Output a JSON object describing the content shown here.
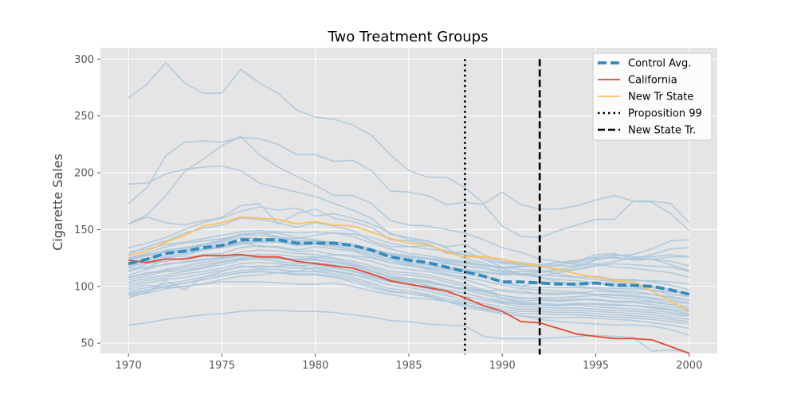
{
  "chart_data": {
    "type": "line",
    "title": "Two Treatment Groups",
    "xlabel": "",
    "ylabel": "Cigarette Sales",
    "xlim": [
      1968.5,
      2001.5
    ],
    "ylim": [
      41,
      310
    ],
    "x_ticks": [
      1970,
      1975,
      1980,
      1985,
      1990,
      1995,
      2000
    ],
    "y_ticks": [
      50,
      100,
      150,
      200,
      250,
      300
    ],
    "grid": true,
    "legend_position": "top-right",
    "colors": {
      "plot_bg": "#e5e5e5",
      "grid": "#ffffff",
      "control_states": "#a9c7dc",
      "control_avg": "#348abd",
      "california": "#e24a33",
      "new_tr_state": "#fbc15e",
      "vline": "#000000"
    },
    "years": [
      1970,
      1971,
      1972,
      1973,
      1974,
      1975,
      1976,
      1977,
      1978,
      1979,
      1980,
      1981,
      1982,
      1983,
      1984,
      1985,
      1986,
      1987,
      1988,
      1989,
      1990,
      1991,
      1992,
      1993,
      1994,
      1995,
      1996,
      1997,
      1998,
      1999,
      2000
    ],
    "series": [
      {
        "name": "Control Avg.",
        "role": "control_avg",
        "values": [
          120,
          124,
          129,
          131,
          134,
          136,
          141,
          141,
          141,
          138,
          138,
          138,
          136,
          132,
          126,
          123,
          121,
          117,
          113,
          109,
          104,
          104,
          103,
          102,
          102,
          103,
          101,
          101,
          100,
          97,
          93
        ]
      },
      {
        "name": "California",
        "role": "california",
        "values": [
          123,
          121,
          124,
          124,
          127,
          127,
          128,
          126,
          126,
          122,
          120,
          118,
          116,
          111,
          105,
          102,
          99,
          96,
          90,
          83,
          78,
          69,
          68,
          63,
          58,
          56,
          54,
          54,
          53,
          47,
          41
        ]
      },
      {
        "name": "New Tr State",
        "role": "new_tr_state",
        "values": [
          127,
          131,
          139,
          145,
          153,
          156,
          161,
          160,
          159,
          155,
          157,
          154,
          153,
          148,
          142,
          138,
          137,
          130,
          126,
          126,
          124,
          120,
          118,
          115,
          111,
          108,
          105,
          104,
          96,
          87,
          78
        ]
      }
    ],
    "control_states": [
      [
        266,
        278,
        297,
        279,
        270,
        270,
        291,
        279,
        270,
        255,
        249,
        247,
        242,
        233,
        216,
        202,
        196,
        196,
        187,
        173,
        183,
        172,
        168,
        168,
        171,
        176,
        180,
        175,
        175,
        173,
        156
      ],
      [
        190,
        191,
        199,
        203,
        205,
        206,
        202,
        191,
        187,
        183,
        179,
        173,
        167,
        160,
        146,
        143,
        140,
        134,
        124,
        121,
        114,
        111,
        108,
        106,
        105,
        103,
        100,
        100,
        99,
        97,
        93
      ],
      [
        173,
        187,
        215,
        227,
        228,
        227,
        231,
        230,
        225,
        216,
        216,
        210,
        211,
        202,
        184,
        183,
        180,
        172,
        174,
        172,
        153,
        144,
        143,
        149,
        154,
        159,
        159,
        175,
        174,
        164,
        149
      ],
      [
        155,
        163,
        180,
        201,
        212,
        224,
        232,
        216,
        205,
        197,
        189,
        180,
        180,
        173,
        158,
        154,
        153,
        150,
        147,
        141,
        134,
        130,
        124,
        122,
        119,
        124,
        126,
        123,
        124,
        119,
        114
      ],
      [
        155,
        161,
        156,
        154,
        158,
        160,
        166,
        170,
        167,
        169,
        162,
        164,
        160,
        155,
        147,
        141,
        140,
        135,
        137,
        128,
        121,
        120,
        117,
        118,
        118,
        120,
        117,
        116,
        114,
        112,
        108
      ],
      [
        134,
        138,
        143,
        150,
        156,
        161,
        171,
        173,
        155,
        164,
        168,
        160,
        157,
        152,
        141,
        140,
        138,
        129,
        131,
        124,
        120,
        119,
        117,
        115,
        111,
        108,
        106,
        106,
        104,
        101,
        97
      ],
      [
        128,
        135,
        140,
        147,
        151,
        154,
        160,
        159,
        156,
        152,
        156,
        153,
        149,
        140,
        135,
        135,
        136,
        131,
        128,
        124,
        117,
        115,
        114,
        111,
        108,
        106,
        104,
        102,
        100,
        97,
        93
      ],
      [
        125,
        129,
        135,
        138,
        140,
        142,
        145,
        145,
        143,
        142,
        145,
        147,
        144,
        138,
        133,
        129,
        127,
        124,
        122,
        119,
        116,
        111,
        108,
        104,
        102,
        103,
        102,
        100,
        97,
        93,
        91
      ],
      [
        119,
        124,
        131,
        131,
        136,
        140,
        145,
        147,
        144,
        140,
        140,
        139,
        137,
        133,
        127,
        124,
        119,
        116,
        114,
        110,
        103,
        100,
        99,
        99,
        99,
        98,
        96,
        96,
        93,
        90,
        88
      ],
      [
        116,
        116,
        125,
        127,
        132,
        137,
        139,
        135,
        135,
        132,
        135,
        133,
        131,
        126,
        121,
        119,
        115,
        111,
        108,
        105,
        101,
        98,
        97,
        96,
        95,
        93,
        92,
        91,
        89,
        86,
        85
      ],
      [
        113,
        120,
        122,
        125,
        128,
        129,
        134,
        136,
        134,
        131,
        131,
        128,
        126,
        122,
        117,
        115,
        113,
        110,
        106,
        101,
        96,
        94,
        94,
        94,
        94,
        93,
        93,
        92,
        90,
        88,
        86
      ],
      [
        110,
        115,
        120,
        121,
        123,
        126,
        130,
        132,
        131,
        129,
        128,
        125,
        122,
        118,
        113,
        112,
        110,
        106,
        102,
        97,
        92,
        89,
        90,
        90,
        91,
        92,
        90,
        89,
        87,
        84,
        82
      ],
      [
        108,
        111,
        115,
        118,
        121,
        124,
        127,
        128,
        128,
        126,
        126,
        124,
        120,
        116,
        111,
        110,
        108,
        104,
        100,
        96,
        90,
        87,
        88,
        87,
        88,
        89,
        86,
        86,
        84,
        82,
        80
      ],
      [
        106,
        109,
        114,
        116,
        119,
        122,
        125,
        125,
        124,
        123,
        123,
        121,
        118,
        113,
        108,
        106,
        104,
        100,
        97,
        93,
        89,
        86,
        85,
        84,
        85,
        84,
        83,
        83,
        82,
        80,
        78
      ],
      [
        104,
        107,
        110,
        113,
        116,
        119,
        123,
        124,
        122,
        120,
        121,
        119,
        116,
        111,
        106,
        104,
        101,
        97,
        94,
        90,
        86,
        84,
        84,
        83,
        84,
        82,
        81,
        80,
        79,
        77,
        75
      ],
      [
        102,
        105,
        108,
        111,
        113,
        116,
        120,
        121,
        120,
        118,
        119,
        117,
        113,
        109,
        104,
        101,
        98,
        94,
        91,
        88,
        85,
        82,
        82,
        81,
        81,
        80,
        79,
        78,
        77,
        75,
        74
      ],
      [
        100,
        103,
        106,
        108,
        111,
        114,
        117,
        118,
        117,
        116,
        116,
        114,
        111,
        106,
        101,
        99,
        96,
        92,
        88,
        85,
        82,
        80,
        80,
        79,
        79,
        78,
        77,
        76,
        75,
        73,
        71
      ],
      [
        96,
        99,
        102,
        105,
        108,
        111,
        114,
        115,
        115,
        113,
        113,
        111,
        108,
        103,
        98,
        96,
        93,
        89,
        86,
        83,
        80,
        78,
        78,
        77,
        77,
        76,
        75,
        74,
        73,
        71,
        69
      ],
      [
        93,
        96,
        100,
        103,
        106,
        109,
        112,
        113,
        112,
        111,
        111,
        109,
        106,
        101,
        96,
        94,
        91,
        87,
        84,
        81,
        78,
        76,
        76,
        75,
        75,
        74,
        73,
        72,
        71,
        69,
        67
      ],
      [
        90,
        95,
        105,
        97,
        108,
        113,
        118,
        116,
        118,
        119,
        114,
        113,
        110,
        108,
        104,
        101,
        100,
        97,
        94,
        90,
        87,
        85,
        84,
        83,
        84,
        85,
        84,
        83,
        81,
        79,
        76
      ],
      [
        98,
        101,
        99,
        100,
        102,
        106,
        109,
        110,
        112,
        113,
        117,
        116,
        114,
        110,
        107,
        105,
        103,
        100,
        98,
        96,
        97,
        96,
        93,
        93,
        94,
        96,
        95,
        94,
        93,
        91,
        88
      ],
      [
        114,
        117,
        119,
        122,
        124,
        125,
        127,
        126,
        125,
        124,
        124,
        122,
        119,
        114,
        109,
        107,
        105,
        101,
        98,
        95,
        92,
        90,
        89,
        88,
        89,
        88,
        87,
        87,
        86,
        84,
        82
      ],
      [
        108,
        112,
        113,
        114,
        117,
        121,
        124,
        126,
        125,
        124,
        125,
        128,
        127,
        125,
        121,
        118,
        116,
        113,
        111,
        108,
        105,
        100,
        104,
        103,
        100,
        99,
        98,
        98,
        97,
        95,
        94
      ],
      [
        124,
        128,
        131,
        134,
        137,
        141,
        146,
        147,
        147,
        143,
        141,
        138,
        135,
        130,
        125,
        123,
        121,
        120,
        118,
        116,
        112,
        111,
        110,
        109,
        108,
        109,
        106,
        105,
        105,
        104,
        102
      ],
      [
        123,
        127,
        132,
        134,
        136,
        136,
        139,
        139,
        139,
        136,
        137,
        135,
        132,
        128,
        123,
        121,
        119,
        117,
        115,
        113,
        111,
        110,
        109,
        112,
        115,
        118,
        120,
        119,
        118,
        117,
        113
      ],
      [
        117,
        121,
        126,
        129,
        132,
        134,
        137,
        139,
        139,
        137,
        138,
        136,
        133,
        128,
        123,
        120,
        117,
        115,
        113,
        112,
        110,
        111,
        112,
        114,
        115,
        119,
        122,
        125,
        124,
        122,
        118
      ],
      [
        121,
        124,
        128,
        131,
        133,
        136,
        139,
        141,
        140,
        138,
        139,
        138,
        136,
        132,
        128,
        126,
        124,
        122,
        120,
        118,
        116,
        117,
        118,
        119,
        121,
        126,
        128,
        126,
        126,
        128,
        126
      ],
      [
        125,
        127,
        130,
        133,
        136,
        139,
        143,
        142,
        142,
        140,
        140,
        139,
        137,
        133,
        129,
        127,
        125,
        123,
        121,
        119,
        117,
        118,
        119,
        121,
        122,
        128,
        129,
        124,
        128,
        133,
        134
      ],
      [
        130,
        133,
        137,
        139,
        142,
        145,
        148,
        149,
        148,
        147,
        148,
        147,
        146,
        143,
        138,
        135,
        133,
        131,
        128,
        126,
        122,
        121,
        119,
        121,
        123,
        125,
        125,
        124,
        124,
        126,
        126
      ],
      [
        118,
        122,
        126,
        129,
        132,
        135,
        138,
        140,
        139,
        137,
        138,
        137,
        135,
        131,
        127,
        125,
        124,
        121,
        118,
        116,
        113,
        113,
        113,
        115,
        117,
        123,
        127,
        128,
        133,
        140,
        141
      ],
      [
        66,
        68,
        71,
        73,
        75,
        76,
        78,
        79,
        79,
        78,
        78,
        77,
        75,
        73,
        70,
        69,
        67,
        66,
        65,
        56,
        54,
        54,
        54,
        55,
        56,
        57,
        56,
        55,
        43,
        44,
        42
      ],
      [
        92,
        94,
        98,
        100,
        102,
        104,
        104,
        104,
        103,
        102,
        102,
        103,
        100,
        96,
        93,
        90,
        89,
        87,
        84,
        80,
        76,
        74,
        71,
        69,
        68,
        67,
        66,
        66,
        65,
        62,
        57
      ],
      [
        94,
        97,
        100,
        103,
        106,
        109,
        112,
        113,
        112,
        110,
        110,
        108,
        104,
        99,
        95,
        94,
        92,
        87,
        82,
        79,
        76,
        74,
        73,
        72,
        73,
        72,
        71,
        70,
        68,
        66,
        63
      ]
    ],
    "vlines": [
      {
        "name": "Proposition 99",
        "x": 1988,
        "style": "dotted"
      },
      {
        "name": "New State Tr.",
        "x": 1992,
        "style": "dashed"
      }
    ],
    "legend": [
      "Control Avg.",
      "California",
      "New Tr State",
      "Proposition 99",
      "New State Tr."
    ]
  }
}
